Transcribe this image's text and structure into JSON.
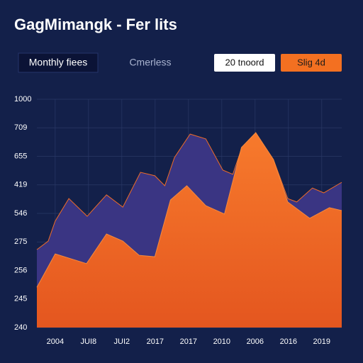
{
  "header": {
    "title": "GagMimangk - Fer lits",
    "tabs": [
      "Monthly fiees",
      "Cmerless"
    ],
    "buttons": [
      "20 tnoord",
      "Slig 4d"
    ]
  },
  "chart_data": {
    "type": "area",
    "categories": [
      "2004",
      "JUI8",
      "JUI2",
      "2017",
      "2017",
      "2010",
      "2006",
      "2016",
      "2019"
    ],
    "y_axis_labels": [
      "1000",
      "709",
      "655",
      "419",
      "546",
      "275",
      "256",
      "245",
      "240"
    ],
    "xlim": [
      -0.55,
      8.6
    ],
    "ylim": [
      0,
      8
    ],
    "yticks": [
      0,
      1,
      2,
      3,
      4,
      5,
      6,
      7,
      8
    ],
    "grid": true,
    "series": [
      {
        "color": "#3a3583",
        "x": [
          -0.55,
          -0.21,
          0,
          0.41,
          0.96,
          1.54,
          2.03,
          2.56,
          2.99,
          3.29,
          3.58,
          4.05,
          4.52,
          5.03,
          5.33,
          5.59,
          6.02,
          6.55,
          6.98,
          7.25,
          7.72,
          8.06,
          8.6
        ],
        "values": [
          2.73,
          3.03,
          3.73,
          4.52,
          3.9,
          4.65,
          4.22,
          5.44,
          5.32,
          4.97,
          5.96,
          6.78,
          6.61,
          5.52,
          5.37,
          6.26,
          6.81,
          5.89,
          4.52,
          4.4,
          4.89,
          4.72,
          5.09
        ]
      },
      {
        "color": "#f06c26",
        "x": [
          -0.55,
          0,
          0.94,
          1.54,
          2.03,
          2.52,
          2.99,
          3.46,
          3.95,
          4.52,
          5.08,
          5.59,
          6.02,
          6.55,
          6.98,
          7.64,
          8.23,
          8.6
        ],
        "values": [
          1.41,
          2.58,
          2.24,
          3.28,
          3.03,
          2.53,
          2.48,
          4.47,
          4.97,
          4.27,
          3.98,
          6.31,
          6.83,
          5.89,
          4.4,
          3.83,
          4.2,
          4.1
        ]
      }
    ]
  }
}
